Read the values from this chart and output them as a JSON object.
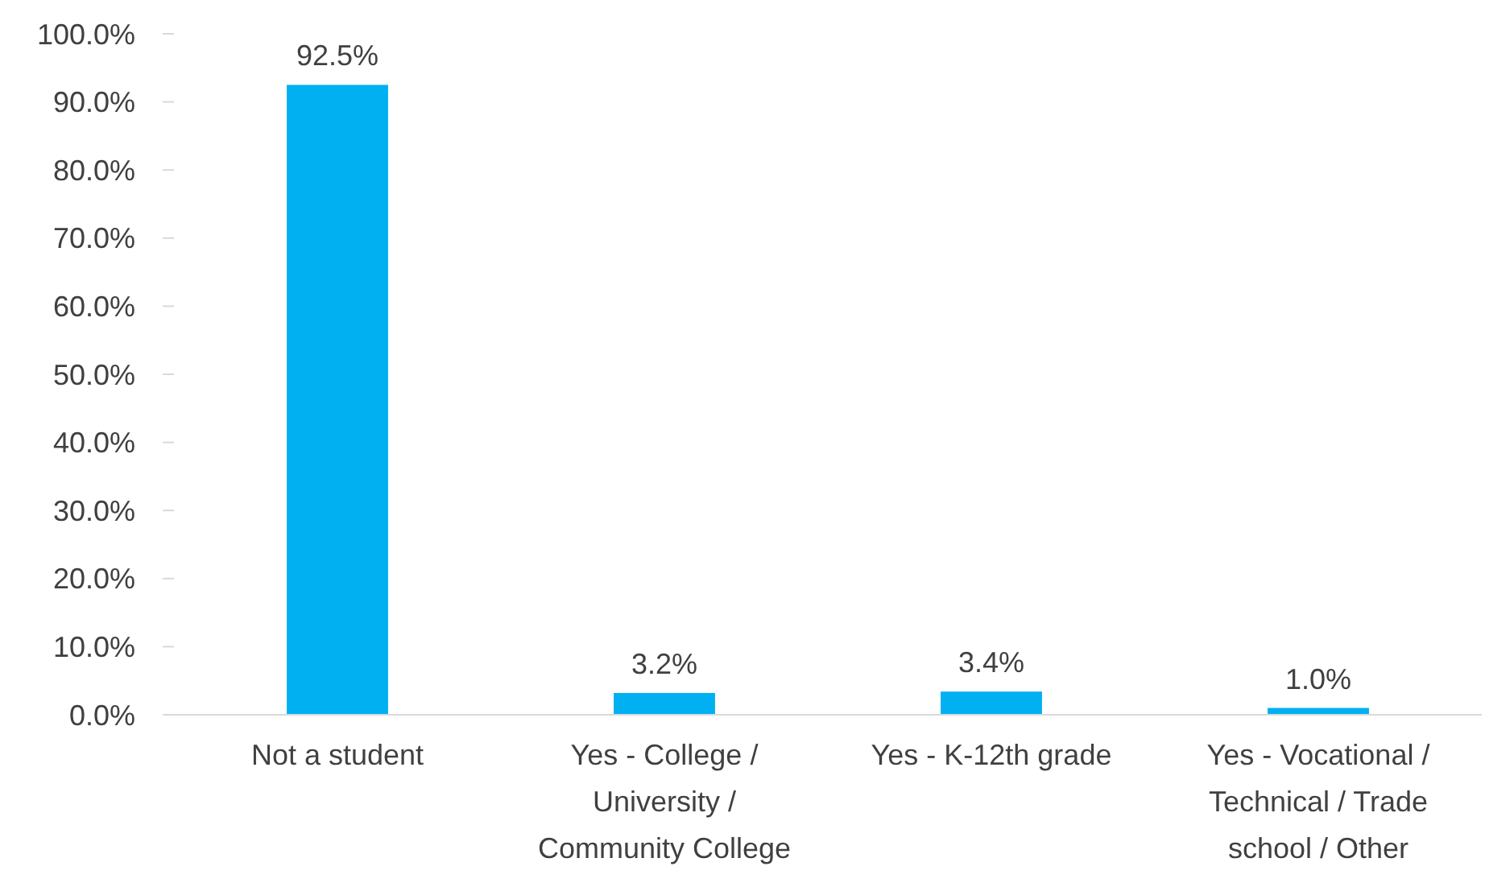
{
  "chart_data": {
    "type": "bar",
    "categories": [
      "Not a student",
      "Yes - College / University / Community College",
      "Yes - K-12th grade",
      "Yes - Vocational / Technical / Trade school / Other"
    ],
    "values": [
      92.5,
      3.2,
      3.4,
      1.0
    ],
    "value_labels": [
      "92.5%",
      "3.2%",
      "3.4%",
      "1.0%"
    ],
    "color": "#00b0f0",
    "ylim": [
      0,
      100
    ],
    "yticks": [
      {
        "value": 0,
        "label": "0.0%"
      },
      {
        "value": 10,
        "label": "10.0%"
      },
      {
        "value": 20,
        "label": "20.0%"
      },
      {
        "value": 30,
        "label": "30.0%"
      },
      {
        "value": 40,
        "label": "40.0%"
      },
      {
        "value": 50,
        "label": "50.0%"
      },
      {
        "value": 60,
        "label": "60.0%"
      },
      {
        "value": 70,
        "label": "70.0%"
      },
      {
        "value": 80,
        "label": "80.0%"
      },
      {
        "value": 90,
        "label": "90.0%"
      },
      {
        "value": 100,
        "label": "100.0%"
      }
    ],
    "grid": false
  }
}
